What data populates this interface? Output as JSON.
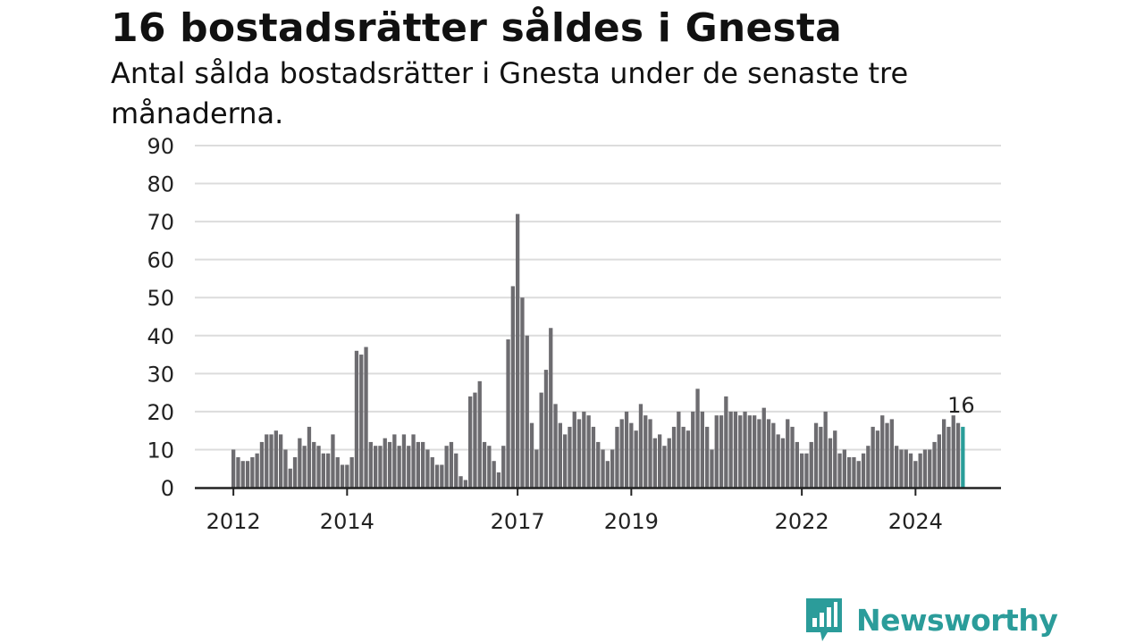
{
  "title": "16 bostadsrätter såldes i Gnesta",
  "subtitle": "Antal sålda bostadsrätter i Gnesta under de senaste tre månaderna.",
  "brand": {
    "name": "Newsworthy",
    "color": "#2b9c9a"
  },
  "chart_data": {
    "type": "bar",
    "title": "16 bostadsrätter såldes i Gnesta",
    "subtitle": "Antal sålda bostadsrätter i Gnesta under de senaste tre månaderna.",
    "xlabel": "",
    "ylabel": "",
    "ylim": [
      0,
      90
    ],
    "yticks": [
      0,
      10,
      20,
      30,
      40,
      50,
      60,
      70,
      80,
      90
    ],
    "xtick_labels": [
      {
        "label": "2012",
        "index": 0
      },
      {
        "label": "2014",
        "index": 24
      },
      {
        "label": "2017",
        "index": 60
      },
      {
        "label": "2019",
        "index": 84
      },
      {
        "label": "2022",
        "index": 120
      },
      {
        "label": "2024",
        "index": 144
      }
    ],
    "grid": true,
    "bar_color": "#6d6c70",
    "highlight_color": "#2a9d99",
    "highlight_index": 154,
    "highlight_label": "16",
    "values": [
      10,
      8,
      7,
      7,
      8,
      9,
      12,
      14,
      14,
      15,
      14,
      10,
      5,
      8,
      13,
      11,
      16,
      12,
      11,
      9,
      9,
      14,
      8,
      6,
      6,
      8,
      36,
      35,
      37,
      12,
      11,
      11,
      13,
      12,
      14,
      11,
      14,
      11,
      14,
      12,
      12,
      10,
      8,
      6,
      6,
      11,
      12,
      9,
      3,
      2,
      24,
      25,
      28,
      12,
      11,
      7,
      4,
      11,
      39,
      53,
      72,
      50,
      40,
      17,
      10,
      25,
      31,
      42,
      22,
      17,
      14,
      16,
      20,
      18,
      20,
      19,
      16,
      12,
      10,
      7,
      10,
      16,
      18,
      20,
      17,
      15,
      22,
      19,
      18,
      13,
      14,
      11,
      13,
      16,
      20,
      16,
      15,
      20,
      26,
      20,
      16,
      10,
      19,
      19,
      24,
      20,
      20,
      19,
      20,
      19,
      19,
      18,
      21,
      18,
      17,
      14,
      13,
      18,
      16,
      12,
      9,
      9,
      12,
      17,
      16,
      20,
      13,
      15,
      9,
      10,
      8,
      8,
      7,
      9,
      11,
      16,
      15,
      19,
      17,
      18,
      11,
      10,
      10,
      9,
      7,
      9,
      10,
      10,
      12,
      14,
      18,
      16,
      19,
      17,
      16
    ]
  }
}
